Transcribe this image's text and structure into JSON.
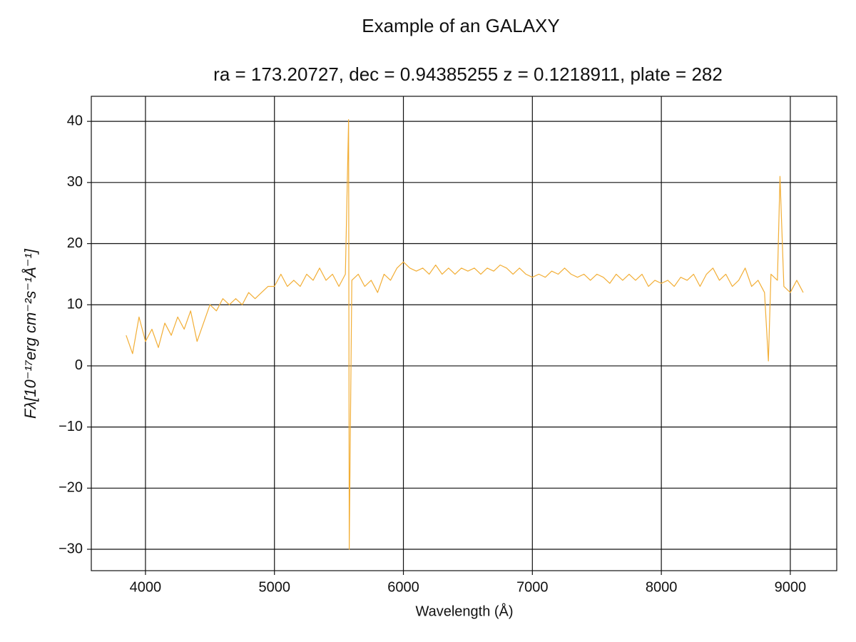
{
  "chart_data": {
    "type": "line",
    "title": "Example of an GALAXY",
    "subtitle": "ra = 173.20727, dec = 0.94385255 z = 0.1218911, plate = 282",
    "x_label": "Wavelength (Å)",
    "y_label": "Fλ[10⁻¹⁷erg cm⁻²s⁻¹Å⁻¹]",
    "x": [
      3850,
      3900,
      3950,
      4000,
      4050,
      4100,
      4150,
      4200,
      4250,
      4300,
      4350,
      4400,
      4450,
      4500,
      4550,
      4600,
      4650,
      4700,
      4750,
      4800,
      4850,
      4900,
      4950,
      5000,
      5050,
      5100,
      5150,
      5200,
      5250,
      5300,
      5350,
      5400,
      5450,
      5500,
      5550,
      5575,
      5580,
      5600,
      5650,
      5700,
      5750,
      5800,
      5850,
      5900,
      5950,
      6000,
      6050,
      6100,
      6150,
      6200,
      6250,
      6300,
      6350,
      6400,
      6450,
      6500,
      6550,
      6600,
      6650,
      6700,
      6750,
      6800,
      6850,
      6900,
      6950,
      7000,
      7050,
      7100,
      7150,
      7200,
      7250,
      7300,
      7350,
      7400,
      7450,
      7500,
      7550,
      7600,
      7650,
      7700,
      7750,
      7800,
      7850,
      7900,
      7950,
      8000,
      8050,
      8100,
      8150,
      8200,
      8250,
      8300,
      8350,
      8400,
      8450,
      8500,
      8550,
      8600,
      8650,
      8700,
      8750,
      8800,
      8830,
      8850,
      8900,
      8920,
      8950,
      9000,
      9050,
      9100
    ],
    "series": [
      {
        "color": "#f2ae36",
        "values": [
          5,
          2,
          8,
          4,
          6,
          3,
          7,
          5,
          8,
          6,
          9,
          4,
          7,
          10,
          9,
          11,
          10,
          11,
          10,
          12,
          11,
          12,
          13,
          13,
          15,
          13,
          14,
          13,
          15,
          14,
          16,
          14,
          15,
          13,
          15,
          40.3,
          -30,
          14,
          15,
          13,
          14,
          12,
          15,
          14,
          16,
          17,
          16,
          15.5,
          16,
          15,
          16.5,
          15,
          16,
          15,
          16,
          15.5,
          16,
          15,
          16,
          15.5,
          16.5,
          16,
          15,
          16,
          15,
          14.5,
          15,
          14.5,
          15.5,
          15,
          16,
          15,
          14.5,
          15,
          14,
          15,
          14.5,
          13.5,
          15,
          14,
          15,
          14,
          15,
          13,
          14,
          13.5,
          14,
          13,
          14.5,
          14,
          15,
          13,
          15,
          16,
          14,
          15,
          13,
          14,
          16,
          13,
          14,
          12,
          0.8,
          15,
          14,
          31,
          13,
          12,
          14,
          12
        ]
      }
    ],
    "xlim": [
      3580,
      9360
    ],
    "ylim": [
      -33.5,
      44.1
    ],
    "xticks": [
      4000,
      5000,
      6000,
      7000,
      8000,
      9000
    ],
    "yticks": [
      {
        "value": -30,
        "label": "−30"
      },
      {
        "value": -20,
        "label": "−20"
      },
      {
        "value": -10,
        "label": "−10"
      },
      0,
      10,
      20,
      30,
      40
    ],
    "grid": true
  }
}
